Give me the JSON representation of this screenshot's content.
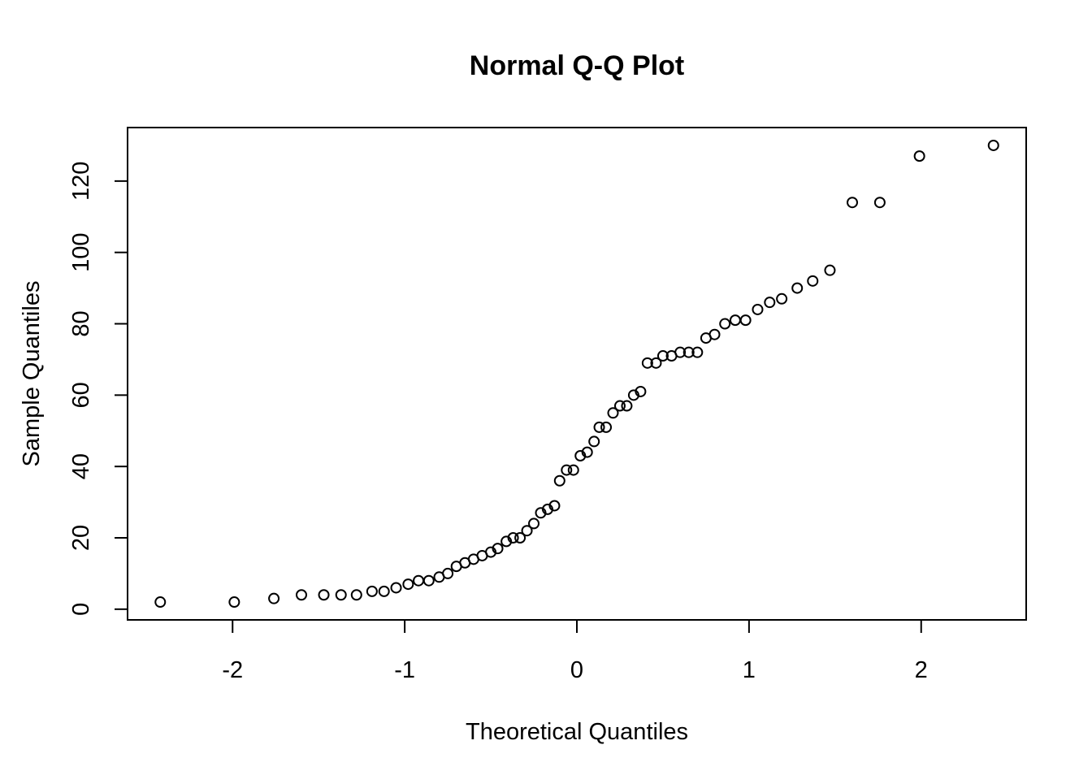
{
  "chart_data": {
    "type": "scatter",
    "title": "Normal Q-Q Plot",
    "xlabel": "Theoretical Quantiles",
    "ylabel": "Sample Quantiles",
    "xlim": [
      -2.61,
      2.61
    ],
    "ylim": [
      -3,
      135
    ],
    "x_ticks": [
      -2,
      -1,
      0,
      1,
      2
    ],
    "x_tick_labels": [
      "-2",
      "-1",
      "0",
      "1",
      "2"
    ],
    "y_ticks": [
      0,
      20,
      40,
      60,
      80,
      100,
      120
    ],
    "y_tick_labels": [
      "0",
      "20",
      "40",
      "60",
      "80",
      "100",
      "120"
    ],
    "grid": false,
    "legend": "none",
    "marker": "open-circle",
    "marker_color": "#000000",
    "points": [
      {
        "x": -2.42,
        "y": 2
      },
      {
        "x": -1.99,
        "y": 2
      },
      {
        "x": -1.76,
        "y": 3
      },
      {
        "x": -1.6,
        "y": 4
      },
      {
        "x": -1.47,
        "y": 4
      },
      {
        "x": -1.37,
        "y": 4
      },
      {
        "x": -1.28,
        "y": 4
      },
      {
        "x": -1.19,
        "y": 5
      },
      {
        "x": -1.12,
        "y": 5
      },
      {
        "x": -1.05,
        "y": 6
      },
      {
        "x": -0.98,
        "y": 7
      },
      {
        "x": -0.92,
        "y": 8
      },
      {
        "x": -0.86,
        "y": 8
      },
      {
        "x": -0.8,
        "y": 9
      },
      {
        "x": -0.75,
        "y": 10
      },
      {
        "x": -0.7,
        "y": 12
      },
      {
        "x": -0.65,
        "y": 13
      },
      {
        "x": -0.6,
        "y": 14
      },
      {
        "x": -0.55,
        "y": 15
      },
      {
        "x": -0.5,
        "y": 16
      },
      {
        "x": -0.46,
        "y": 17
      },
      {
        "x": -0.41,
        "y": 19
      },
      {
        "x": -0.37,
        "y": 20
      },
      {
        "x": -0.33,
        "y": 20
      },
      {
        "x": -0.29,
        "y": 22
      },
      {
        "x": -0.25,
        "y": 24
      },
      {
        "x": -0.21,
        "y": 27
      },
      {
        "x": -0.17,
        "y": 28
      },
      {
        "x": -0.13,
        "y": 29
      },
      {
        "x": -0.1,
        "y": 36
      },
      {
        "x": -0.06,
        "y": 39
      },
      {
        "x": -0.02,
        "y": 39
      },
      {
        "x": 0.02,
        "y": 43
      },
      {
        "x": 0.06,
        "y": 44
      },
      {
        "x": 0.1,
        "y": 47
      },
      {
        "x": 0.13,
        "y": 51
      },
      {
        "x": 0.17,
        "y": 51
      },
      {
        "x": 0.21,
        "y": 55
      },
      {
        "x": 0.25,
        "y": 57
      },
      {
        "x": 0.29,
        "y": 57
      },
      {
        "x": 0.33,
        "y": 60
      },
      {
        "x": 0.37,
        "y": 61
      },
      {
        "x": 0.41,
        "y": 69
      },
      {
        "x": 0.46,
        "y": 69
      },
      {
        "x": 0.5,
        "y": 71
      },
      {
        "x": 0.55,
        "y": 71
      },
      {
        "x": 0.6,
        "y": 72
      },
      {
        "x": 0.65,
        "y": 72
      },
      {
        "x": 0.7,
        "y": 72
      },
      {
        "x": 0.75,
        "y": 76
      },
      {
        "x": 0.8,
        "y": 77
      },
      {
        "x": 0.86,
        "y": 80
      },
      {
        "x": 0.92,
        "y": 81
      },
      {
        "x": 0.98,
        "y": 81
      },
      {
        "x": 1.05,
        "y": 84
      },
      {
        "x": 1.12,
        "y": 86
      },
      {
        "x": 1.19,
        "y": 87
      },
      {
        "x": 1.28,
        "y": 90
      },
      {
        "x": 1.37,
        "y": 92
      },
      {
        "x": 1.47,
        "y": 95
      },
      {
        "x": 1.6,
        "y": 114
      },
      {
        "x": 1.76,
        "y": 114
      },
      {
        "x": 1.99,
        "y": 127
      },
      {
        "x": 2.42,
        "y": 130
      }
    ]
  }
}
